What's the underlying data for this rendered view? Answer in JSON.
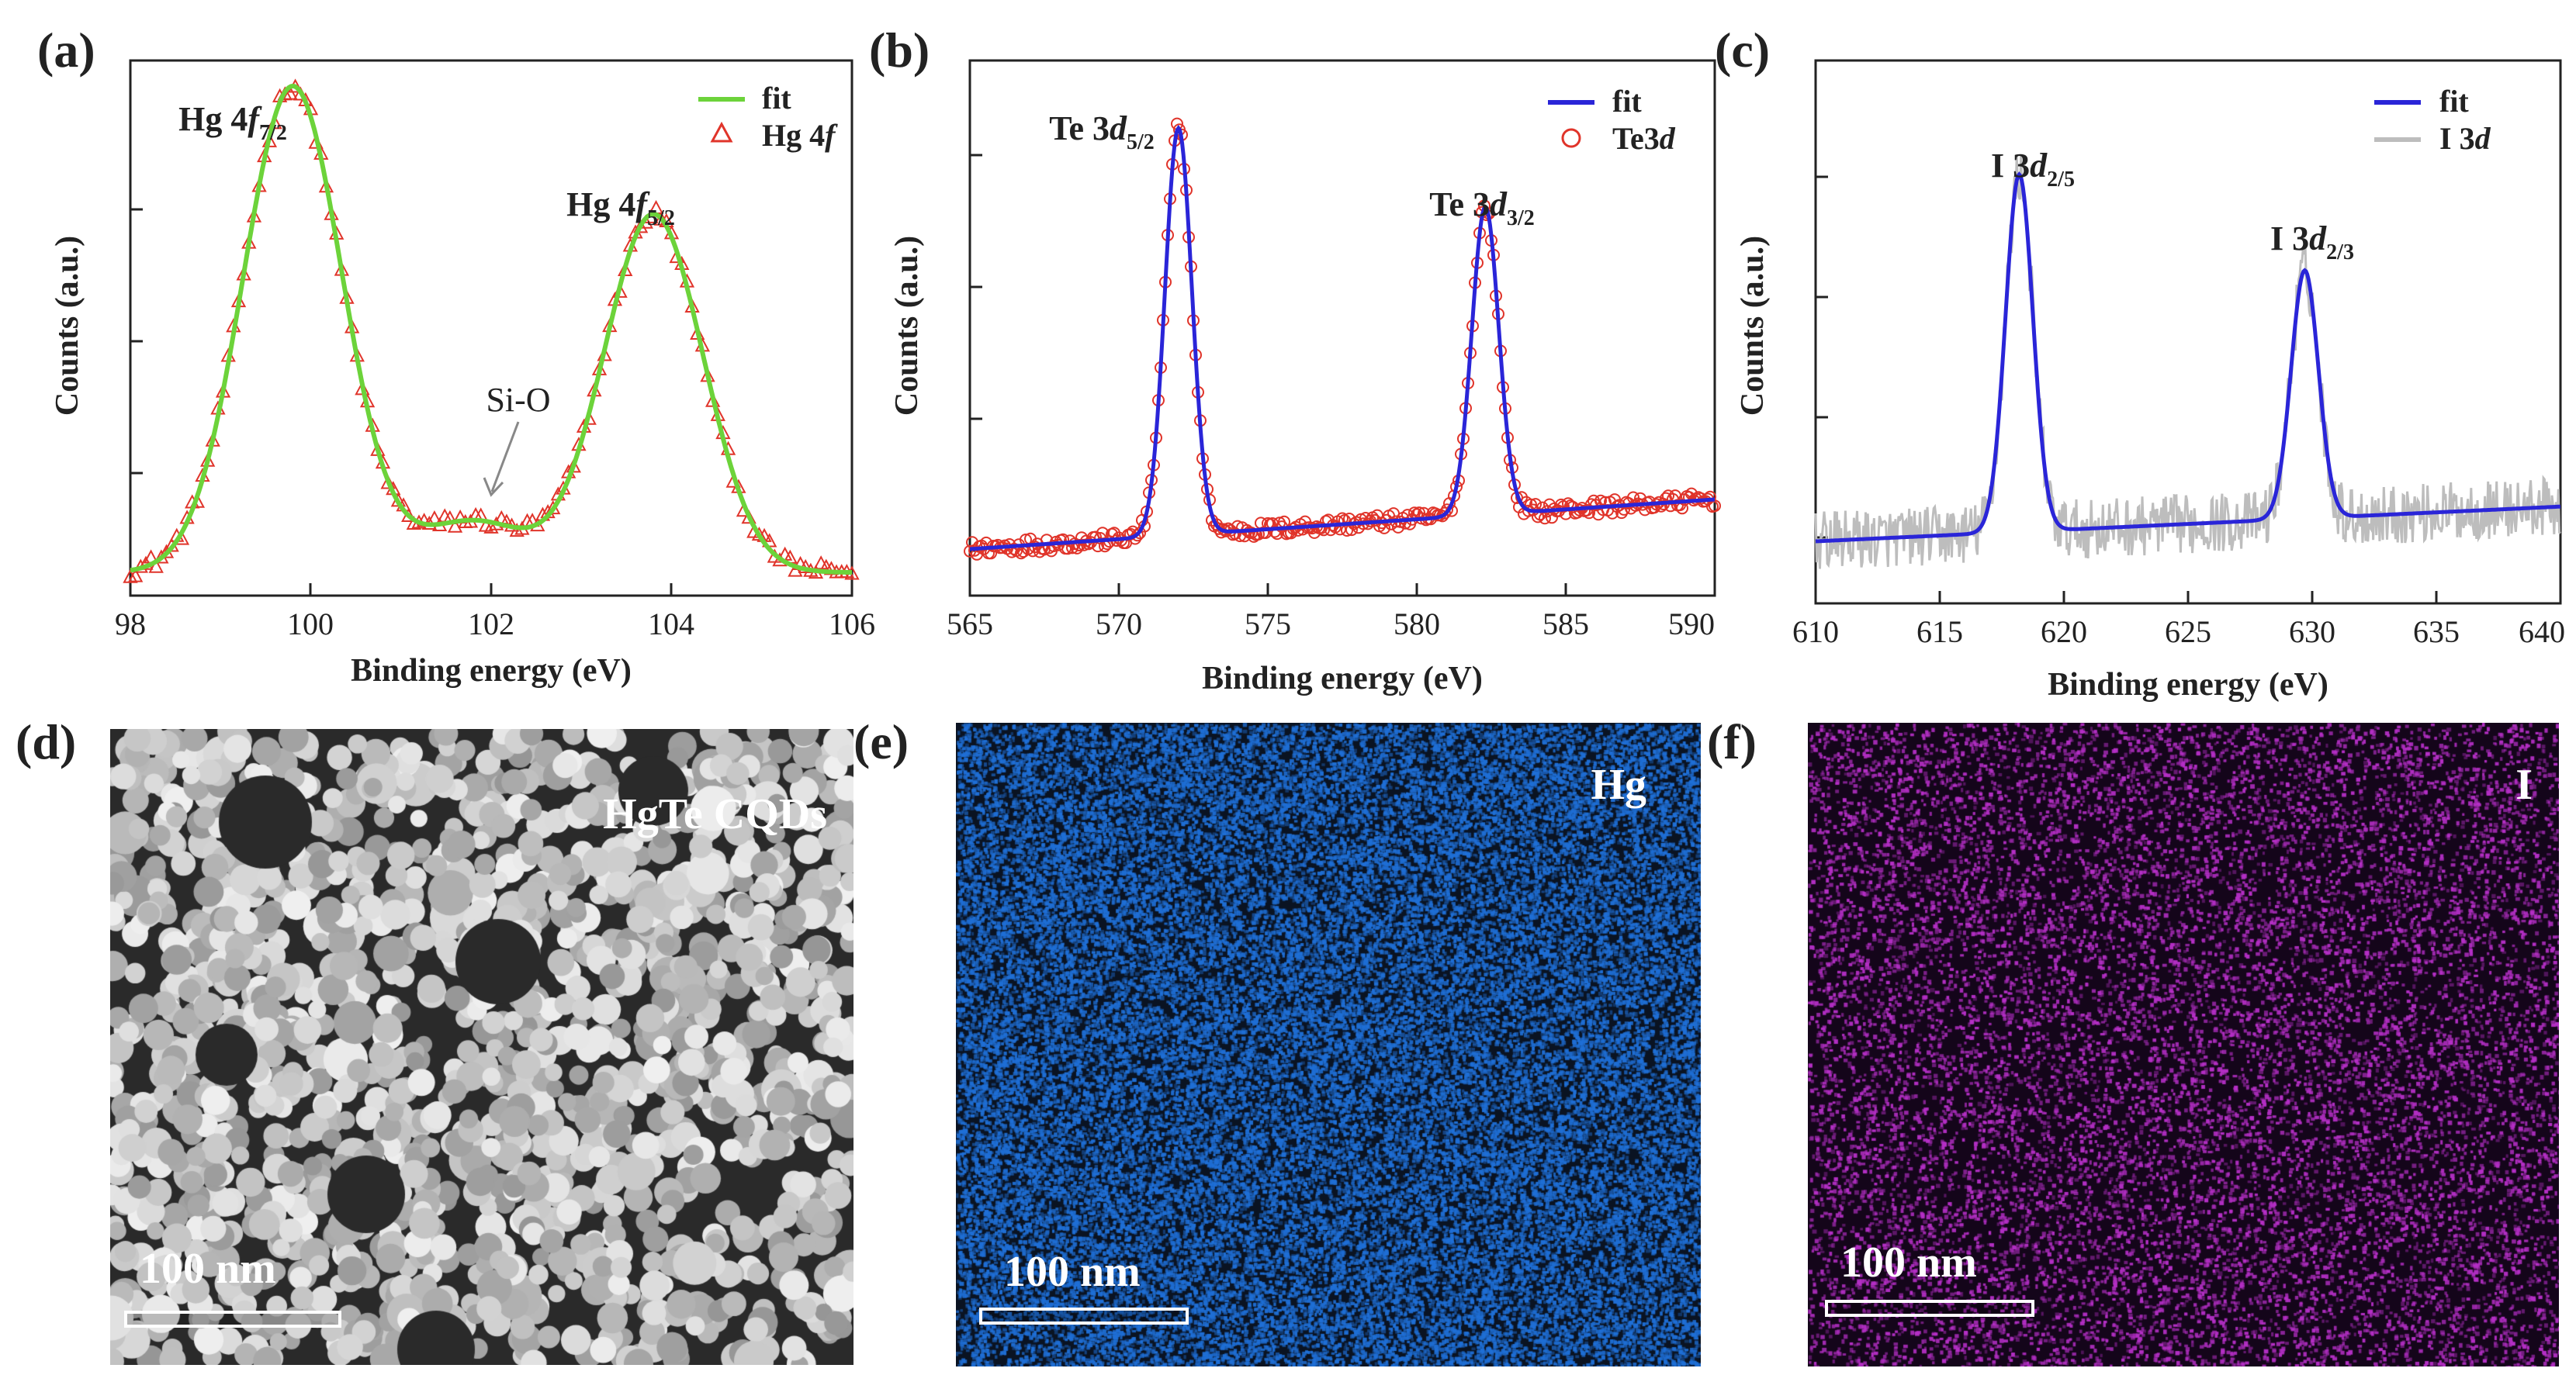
{
  "panel_labels": [
    "(a)",
    "(b)",
    "(c)",
    "(d)",
    "(e)",
    "(f)"
  ],
  "chart_data": [
    {
      "type": "line",
      "xlabel": "Binding energy (eV)",
      "ylabel": "Counts (a.u.)",
      "xlim": [
        98,
        106
      ],
      "xticks": [
        "98",
        "100",
        "102",
        "104",
        "106"
      ],
      "legend": {
        "position": "top-right",
        "entries": [
          "fit",
          "Hg 4f"
        ]
      },
      "colors": {
        "fit": "#6cd33a",
        "data": "#e0342a"
      },
      "peaks": [
        {
          "center": 99.8,
          "height": 0.95,
          "width": 0.55
        },
        {
          "center": 101.8,
          "height": 0.1,
          "width": 0.6
        },
        {
          "center": 103.8,
          "height": 0.7,
          "width": 0.55
        }
      ],
      "annotations": [
        "Hg 4f7/2",
        "Si-O",
        "Hg 4f5/2"
      ],
      "series": [
        {
          "name": "fit",
          "style": "line"
        },
        {
          "name": "Hg 4f",
          "style": "triangle"
        }
      ]
    },
    {
      "type": "line",
      "xlabel": "Binding energy (eV)",
      "ylabel": "Counts (a.u.)",
      "xlim": [
        565,
        590
      ],
      "xticks": [
        "565",
        "570",
        "575",
        "580",
        "585",
        "590"
      ],
      "legend": {
        "position": "top-right",
        "entries": [
          "fit",
          "Te3d"
        ]
      },
      "colors": {
        "fit": "#2a25d8",
        "data": "#e0342a"
      },
      "peaks": [
        {
          "center": 572.0,
          "height": 0.82,
          "width": 0.45
        },
        {
          "center": 582.3,
          "height": 0.62,
          "width": 0.45
        }
      ],
      "annotations": [
        "Te 3d5/2",
        "Te 3d3/2"
      ],
      "series": [
        {
          "name": "fit",
          "style": "line"
        },
        {
          "name": "Te3d",
          "style": "circle"
        }
      ]
    },
    {
      "type": "line",
      "xlabel": "Binding energy (eV)",
      "ylabel": "Counts (a.u.)",
      "xlim": [
        610,
        640
      ],
      "xticks": [
        "610",
        "615",
        "620",
        "625",
        "630",
        "635",
        "640"
      ],
      "legend": {
        "position": "top-right",
        "entries": [
          "fit",
          "I 3d"
        ]
      },
      "colors": {
        "fit": "#2a25d8",
        "data": "#bdbdbd"
      },
      "peaks": [
        {
          "center": 618.2,
          "height": 0.72,
          "width": 0.55
        },
        {
          "center": 629.7,
          "height": 0.5,
          "width": 0.55
        }
      ],
      "annotations": [
        "I 3d2/5",
        "I 3d2/3"
      ],
      "series": [
        {
          "name": "fit",
          "style": "line"
        },
        {
          "name": "I 3d",
          "style": "noisy-line"
        }
      ]
    }
  ],
  "micrographs": [
    {
      "label": "HgTe CQDs",
      "scale_bar": "100 nm",
      "color": "#e6e6e6",
      "background": "#2a2a2a"
    },
    {
      "label": "Hg",
      "scale_bar": "100 nm",
      "color": "#1f6fd6",
      "background": "#0a1322"
    },
    {
      "label": "I",
      "scale_bar": "100 nm",
      "color": "#b52fc6",
      "background": "#14051a"
    }
  ]
}
